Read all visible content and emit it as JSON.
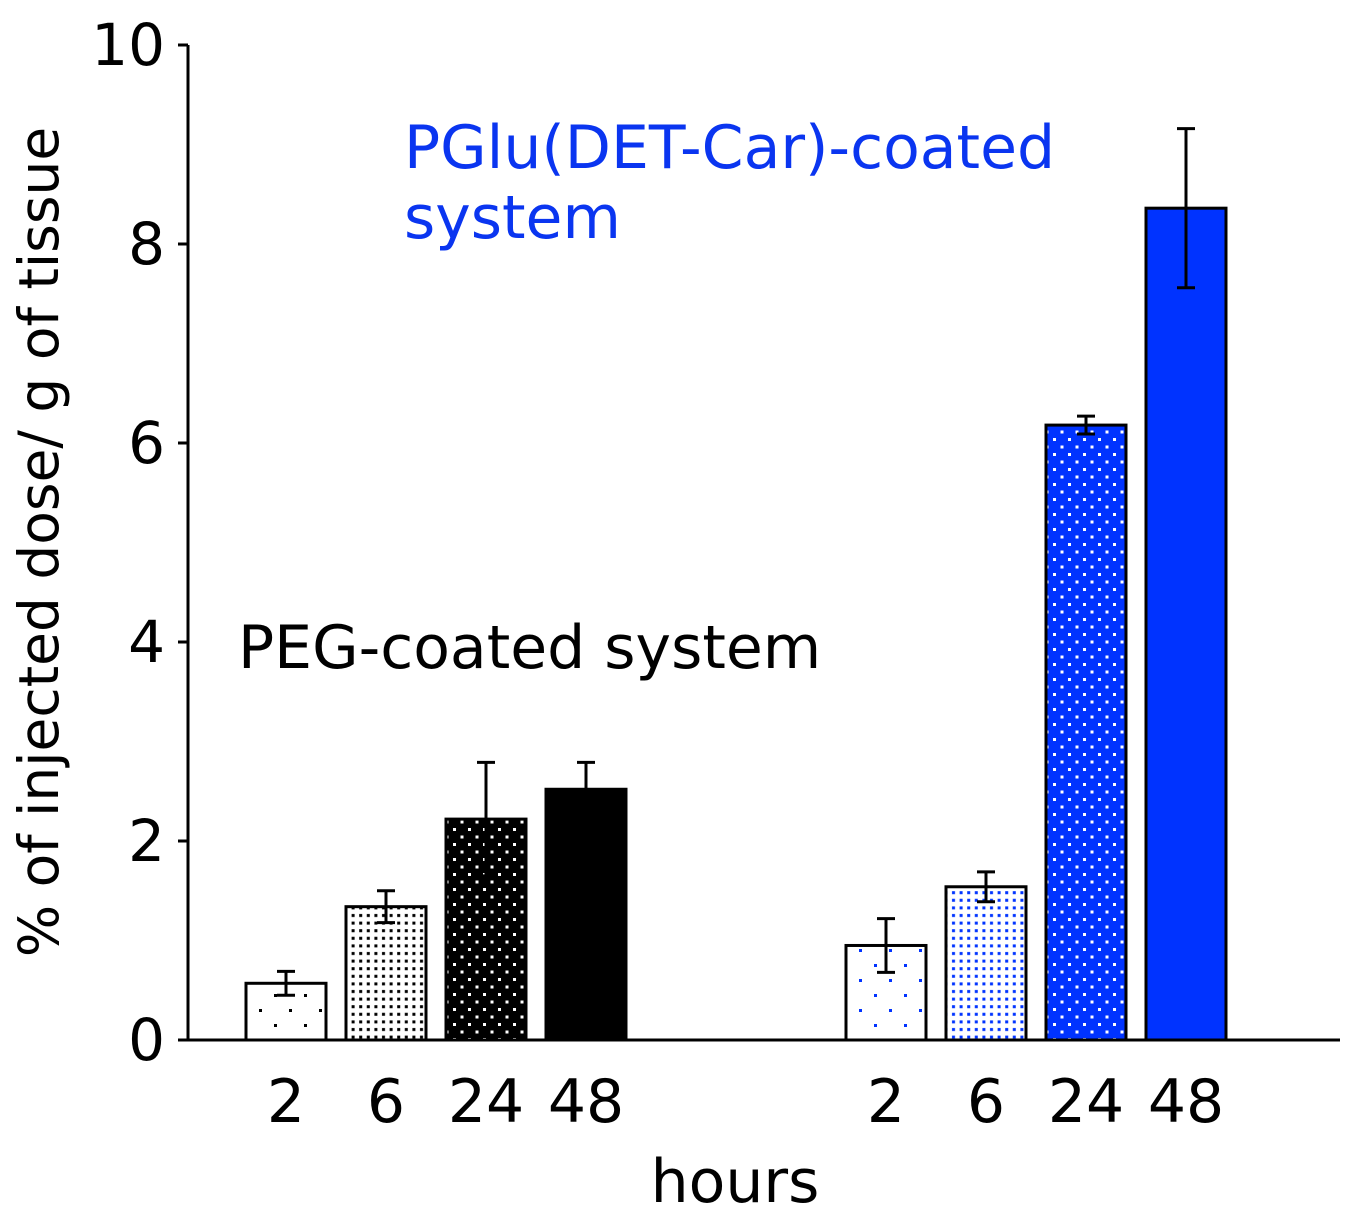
{
  "chart_data": {
    "type": "bar",
    "title": "",
    "xlabel": "hours",
    "ylabel": "% of injected dose/ g of tissue",
    "ylim": [
      0,
      10
    ],
    "yticks": [
      "0",
      "2",
      "4",
      "6",
      "8",
      "10"
    ],
    "ytick_values": [
      0,
      2,
      4,
      6,
      8,
      10
    ],
    "grid": false,
    "colors": {
      "peg": "#000000",
      "pglu": "#0033ff",
      "pglu_label": "#0a35f0"
    },
    "groups": [
      {
        "name": "PEG-coated system",
        "label_lines": [
          "PEG-coated system"
        ],
        "color_key": "peg",
        "categories": [
          "2",
          "6",
          "24",
          "48"
        ],
        "values": [
          0.57,
          1.34,
          2.22,
          2.52
        ],
        "errors": [
          0.12,
          0.16,
          0.57,
          0.27
        ]
      },
      {
        "name": "PGlu(DET-Car)-coated system",
        "label_lines": [
          "PGlu(DET-Car)-coated",
          "system"
        ],
        "color_key": "pglu",
        "categories": [
          "2",
          "6",
          "24",
          "48"
        ],
        "values": [
          0.95,
          1.54,
          6.18,
          8.36
        ],
        "errors": [
          0.27,
          0.15,
          0.09,
          0.8
        ]
      }
    ]
  }
}
